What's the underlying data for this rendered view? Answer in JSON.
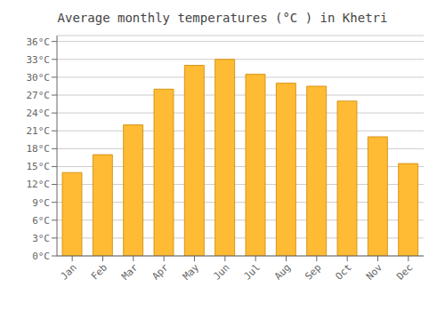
{
  "chart_data": {
    "type": "bar",
    "title": "Average monthly temperatures (°C ) in Khetri",
    "categories": [
      "Jan",
      "Feb",
      "Mar",
      "Apr",
      "May",
      "Jun",
      "Jul",
      "Aug",
      "Sep",
      "Oct",
      "Nov",
      "Dec"
    ],
    "values": [
      14,
      17,
      22,
      28,
      32,
      33,
      30.5,
      29,
      28.5,
      26,
      20,
      15.5
    ],
    "color": "#FFBB33",
    "ylim": [
      0,
      37
    ],
    "yticks": [
      {
        "value": 0,
        "label": "0°C"
      },
      {
        "value": 3,
        "label": "3°C"
      },
      {
        "value": 6,
        "label": "6°C"
      },
      {
        "value": 9,
        "label": "9°C"
      },
      {
        "value": 12,
        "label": "12°C"
      },
      {
        "value": 15,
        "label": "15°C"
      },
      {
        "value": 18,
        "label": "18°C"
      },
      {
        "value": 21,
        "label": "21°C"
      },
      {
        "value": 24,
        "label": "24°C"
      },
      {
        "value": 27,
        "label": "27°C"
      },
      {
        "value": 30,
        "label": "30°C"
      },
      {
        "value": 33,
        "label": "33°C"
      },
      {
        "value": 36,
        "label": "36°C"
      }
    ],
    "grid": true
  }
}
